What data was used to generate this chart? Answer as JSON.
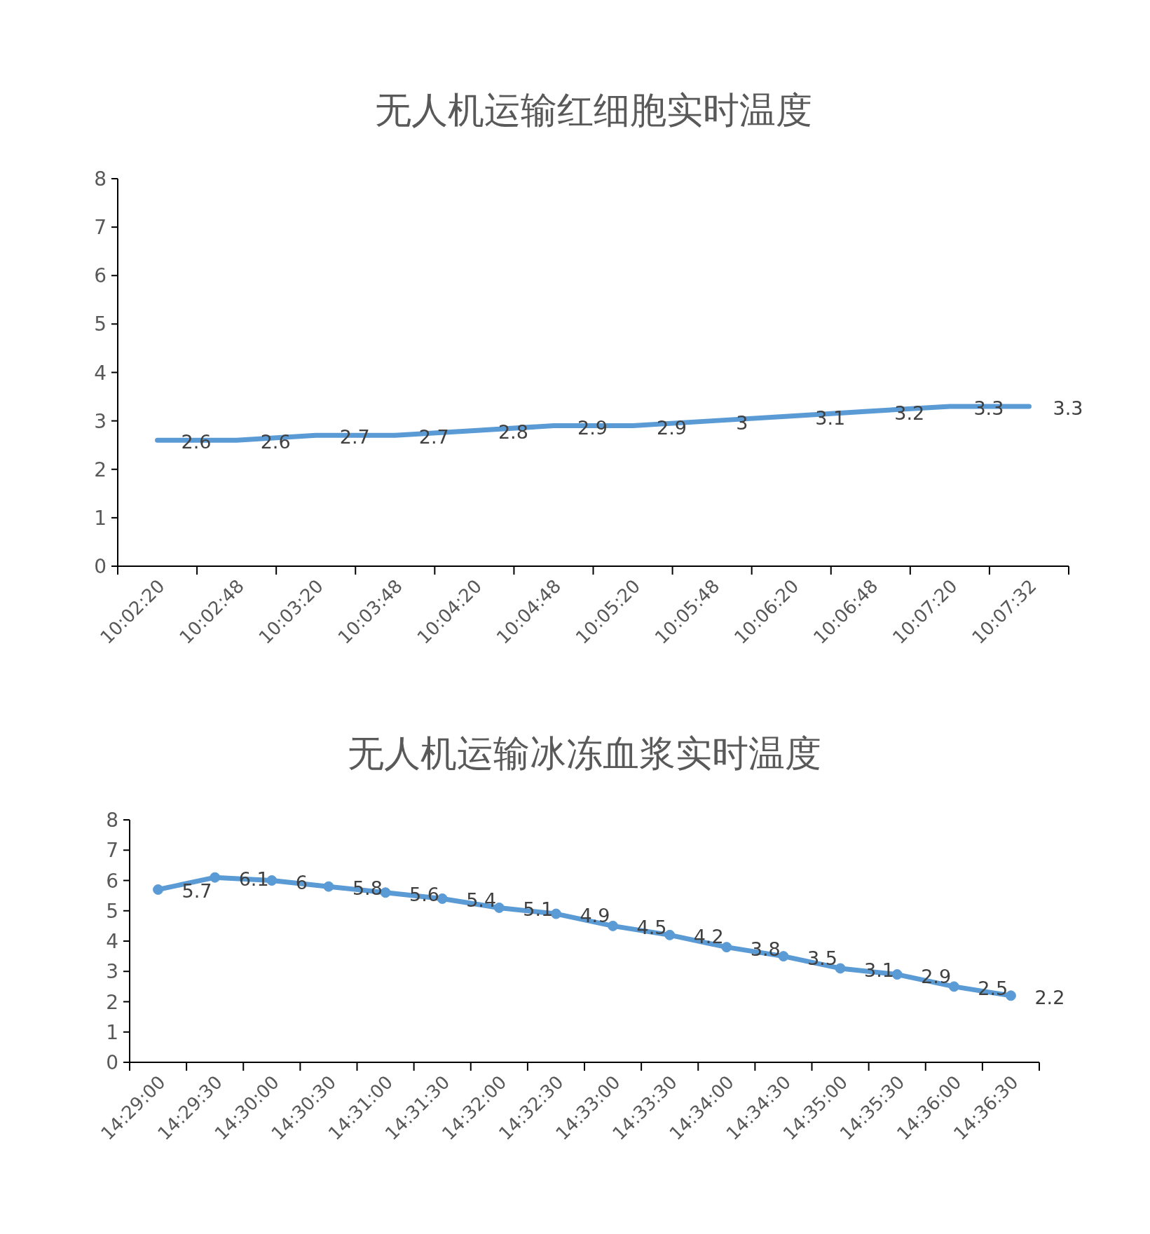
{
  "chart_data": [
    {
      "type": "line",
      "title": "无人机运输红细胞实时温度",
      "categories": [
        "10:02:20",
        "10:02:48",
        "10:03:20",
        "10:03:48",
        "10:04:20",
        "10:04:48",
        "10:05:20",
        "10:05:48",
        "10:06:20",
        "10:06:48",
        "10:07:20",
        "10:07:32"
      ],
      "values": [
        2.6,
        2.6,
        2.7,
        2.7,
        2.8,
        2.9,
        2.9,
        3,
        3.1,
        3.2,
        3.3,
        3.3
      ],
      "color": "#5b9bd5",
      "ylim": [
        0,
        8
      ],
      "yticks": [
        0,
        1,
        2,
        3,
        4,
        5,
        6,
        7,
        8
      ],
      "data_labels": true,
      "marker": "none"
    },
    {
      "type": "line",
      "title": "无人机运输冰冻血浆实时温度",
      "categories": [
        "14:29:00",
        "14:29:30",
        "14:30:00",
        "14:30:30",
        "14:31:00",
        "14:31:30",
        "14:32:00",
        "14:32:30",
        "14:33:00",
        "14:33:30",
        "14:34:00",
        "14:34:30",
        "14:35:00",
        "14:35:30",
        "14:36:00",
        "14:36:30"
      ],
      "values": [
        5.7,
        6.1,
        6,
        5.8,
        5.6,
        5.4,
        5.1,
        4.9,
        4.5,
        4.2,
        3.8,
        3.5,
        3.1,
        2.9,
        2.5,
        2.2
      ],
      "color": "#5b9bd5",
      "ylim": [
        0,
        8
      ],
      "yticks": [
        0,
        1,
        2,
        3,
        4,
        5,
        6,
        7,
        8
      ],
      "data_labels": true,
      "marker": "circle"
    }
  ]
}
